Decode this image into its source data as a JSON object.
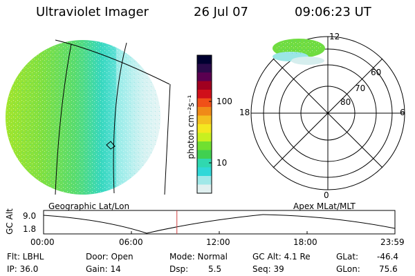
{
  "header": {
    "instrument": "Ultraviolet Imager",
    "date": "26 Jul 07",
    "time": "09:06:23 UT"
  },
  "colorbar": {
    "unit_label": "photon cm⁻²s⁻¹",
    "ticks": [
      "100",
      "10"
    ],
    "colors": [
      "#000030",
      "#2a0a4a",
      "#5a0050",
      "#a00020",
      "#d0101a",
      "#f05018",
      "#f08a18",
      "#f4c020",
      "#f4e820",
      "#c8f020",
      "#70e030",
      "#40d050",
      "#30d8b0",
      "#30d8d8",
      "#a0e8e8",
      "#e0f0f0"
    ]
  },
  "polar": {
    "clock_labels": [
      "12",
      "18",
      "6",
      "0"
    ],
    "lat_labels": [
      "60",
      "70",
      "80"
    ]
  },
  "map_labels": {
    "left": "Geographic Lat/Lon",
    "right": "Apex MLat/MLT"
  },
  "altitude_plot": {
    "ylabel": "GC Alt",
    "yticks": [
      "9.0",
      "1.8"
    ],
    "xticks": [
      "00:00",
      "06:00",
      "12:00",
      "18:00",
      "23:59"
    ],
    "marker_time": "09:06:23",
    "marker_color": "#d04040"
  },
  "info": {
    "filter": "Flt: LBHL",
    "ip": "IP: 36.0",
    "door": "Door: Open",
    "gain": "Gain: 14",
    "mode": "Mode: Normal",
    "dsp_label": "Dsp:",
    "dsp_value": "5.5",
    "gc_alt": "GC Alt: 4.1 Re",
    "seq": "Seq: 39",
    "glat_label": "GLat:",
    "glat_value": "-46.4",
    "glon_label": "GLon:",
    "glon_value": "75.6"
  },
  "colors": {
    "green": "#78e040",
    "yellow_green": "#b0e820",
    "cyan": "#40e0d8",
    "light_cyan": "#b8ecec"
  }
}
